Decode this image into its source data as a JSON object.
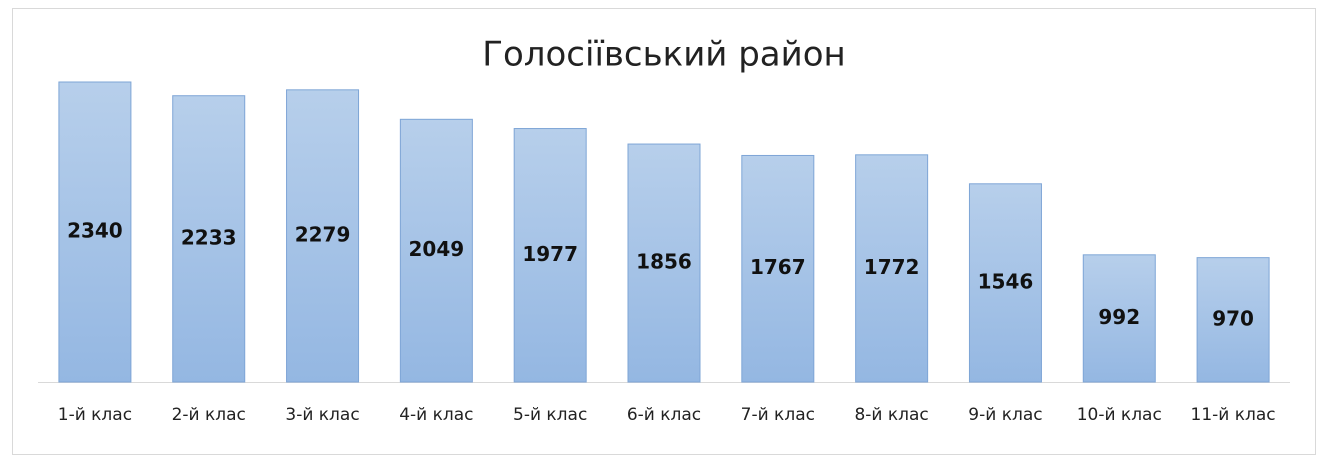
{
  "chart_data": {
    "type": "bar",
    "title": "Голосіївський район",
    "categories": [
      "1-й клас",
      "2-й клас",
      "3-й клас",
      "4-й клас",
      "5-й клас",
      "6-й клас",
      "7-й клас",
      "8-й клас",
      "9-й клас",
      "10-й клас",
      "11-й клас"
    ],
    "values": [
      2340,
      2233,
      2279,
      2049,
      1977,
      1856,
      1767,
      1772,
      1546,
      992,
      970
    ],
    "color": "#a7c4e8"
  }
}
